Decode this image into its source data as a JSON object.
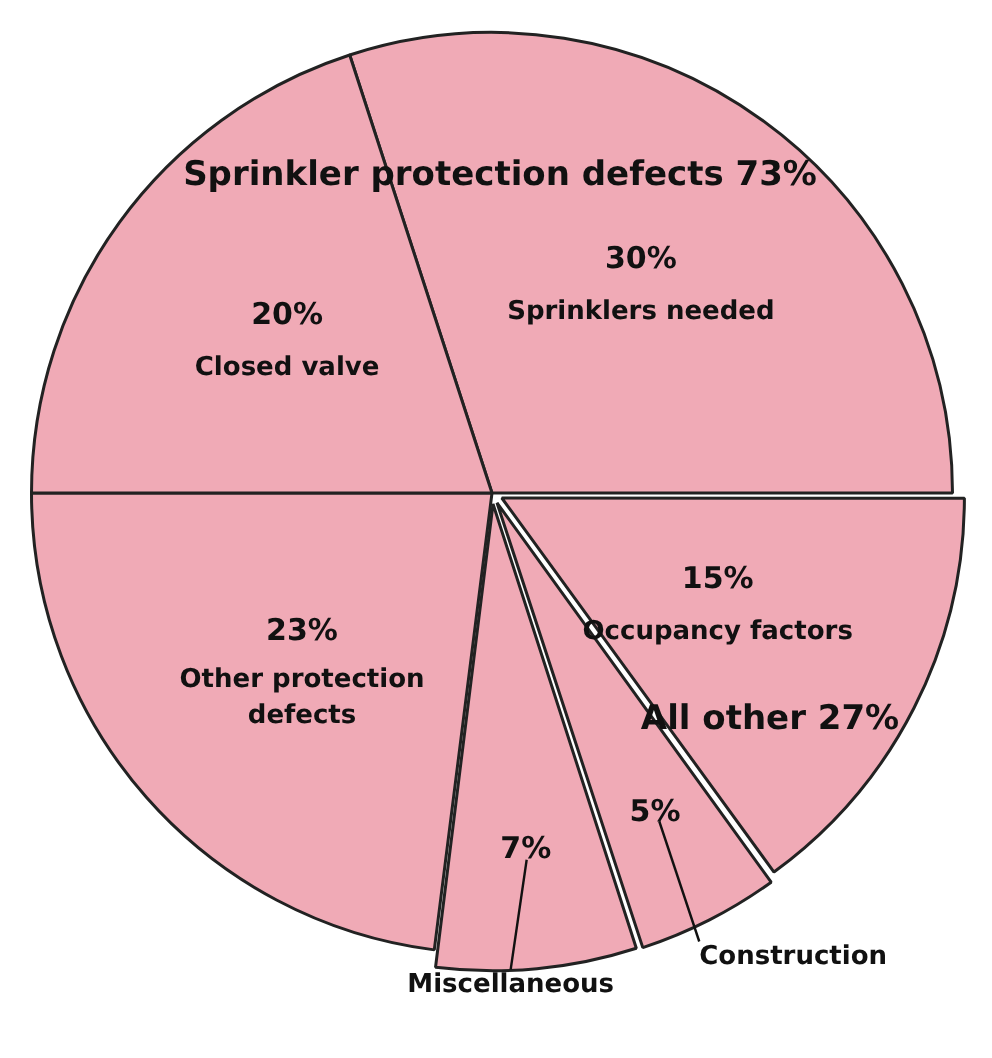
{
  "chart_data": {
    "type": "pie",
    "categories": [
      "Sprinklers needed",
      "Occupancy factors",
      "Construction",
      "Miscellaneous",
      "Other protection defects",
      "Closed valve"
    ],
    "values": [
      30,
      15,
      5,
      7,
      23,
      20
    ],
    "value_labels": [
      "30%",
      "15%",
      "5%",
      "7%",
      "23%",
      "20%"
    ],
    "colors": [
      "#f0aab6",
      "#f0aab6",
      "#f0aab6",
      "#f0aab6",
      "#f0aab6",
      "#f0aab6"
    ],
    "annotations": [
      "Sprinkler protection defects 73%",
      "All other 27%"
    ],
    "legend": false
  }
}
